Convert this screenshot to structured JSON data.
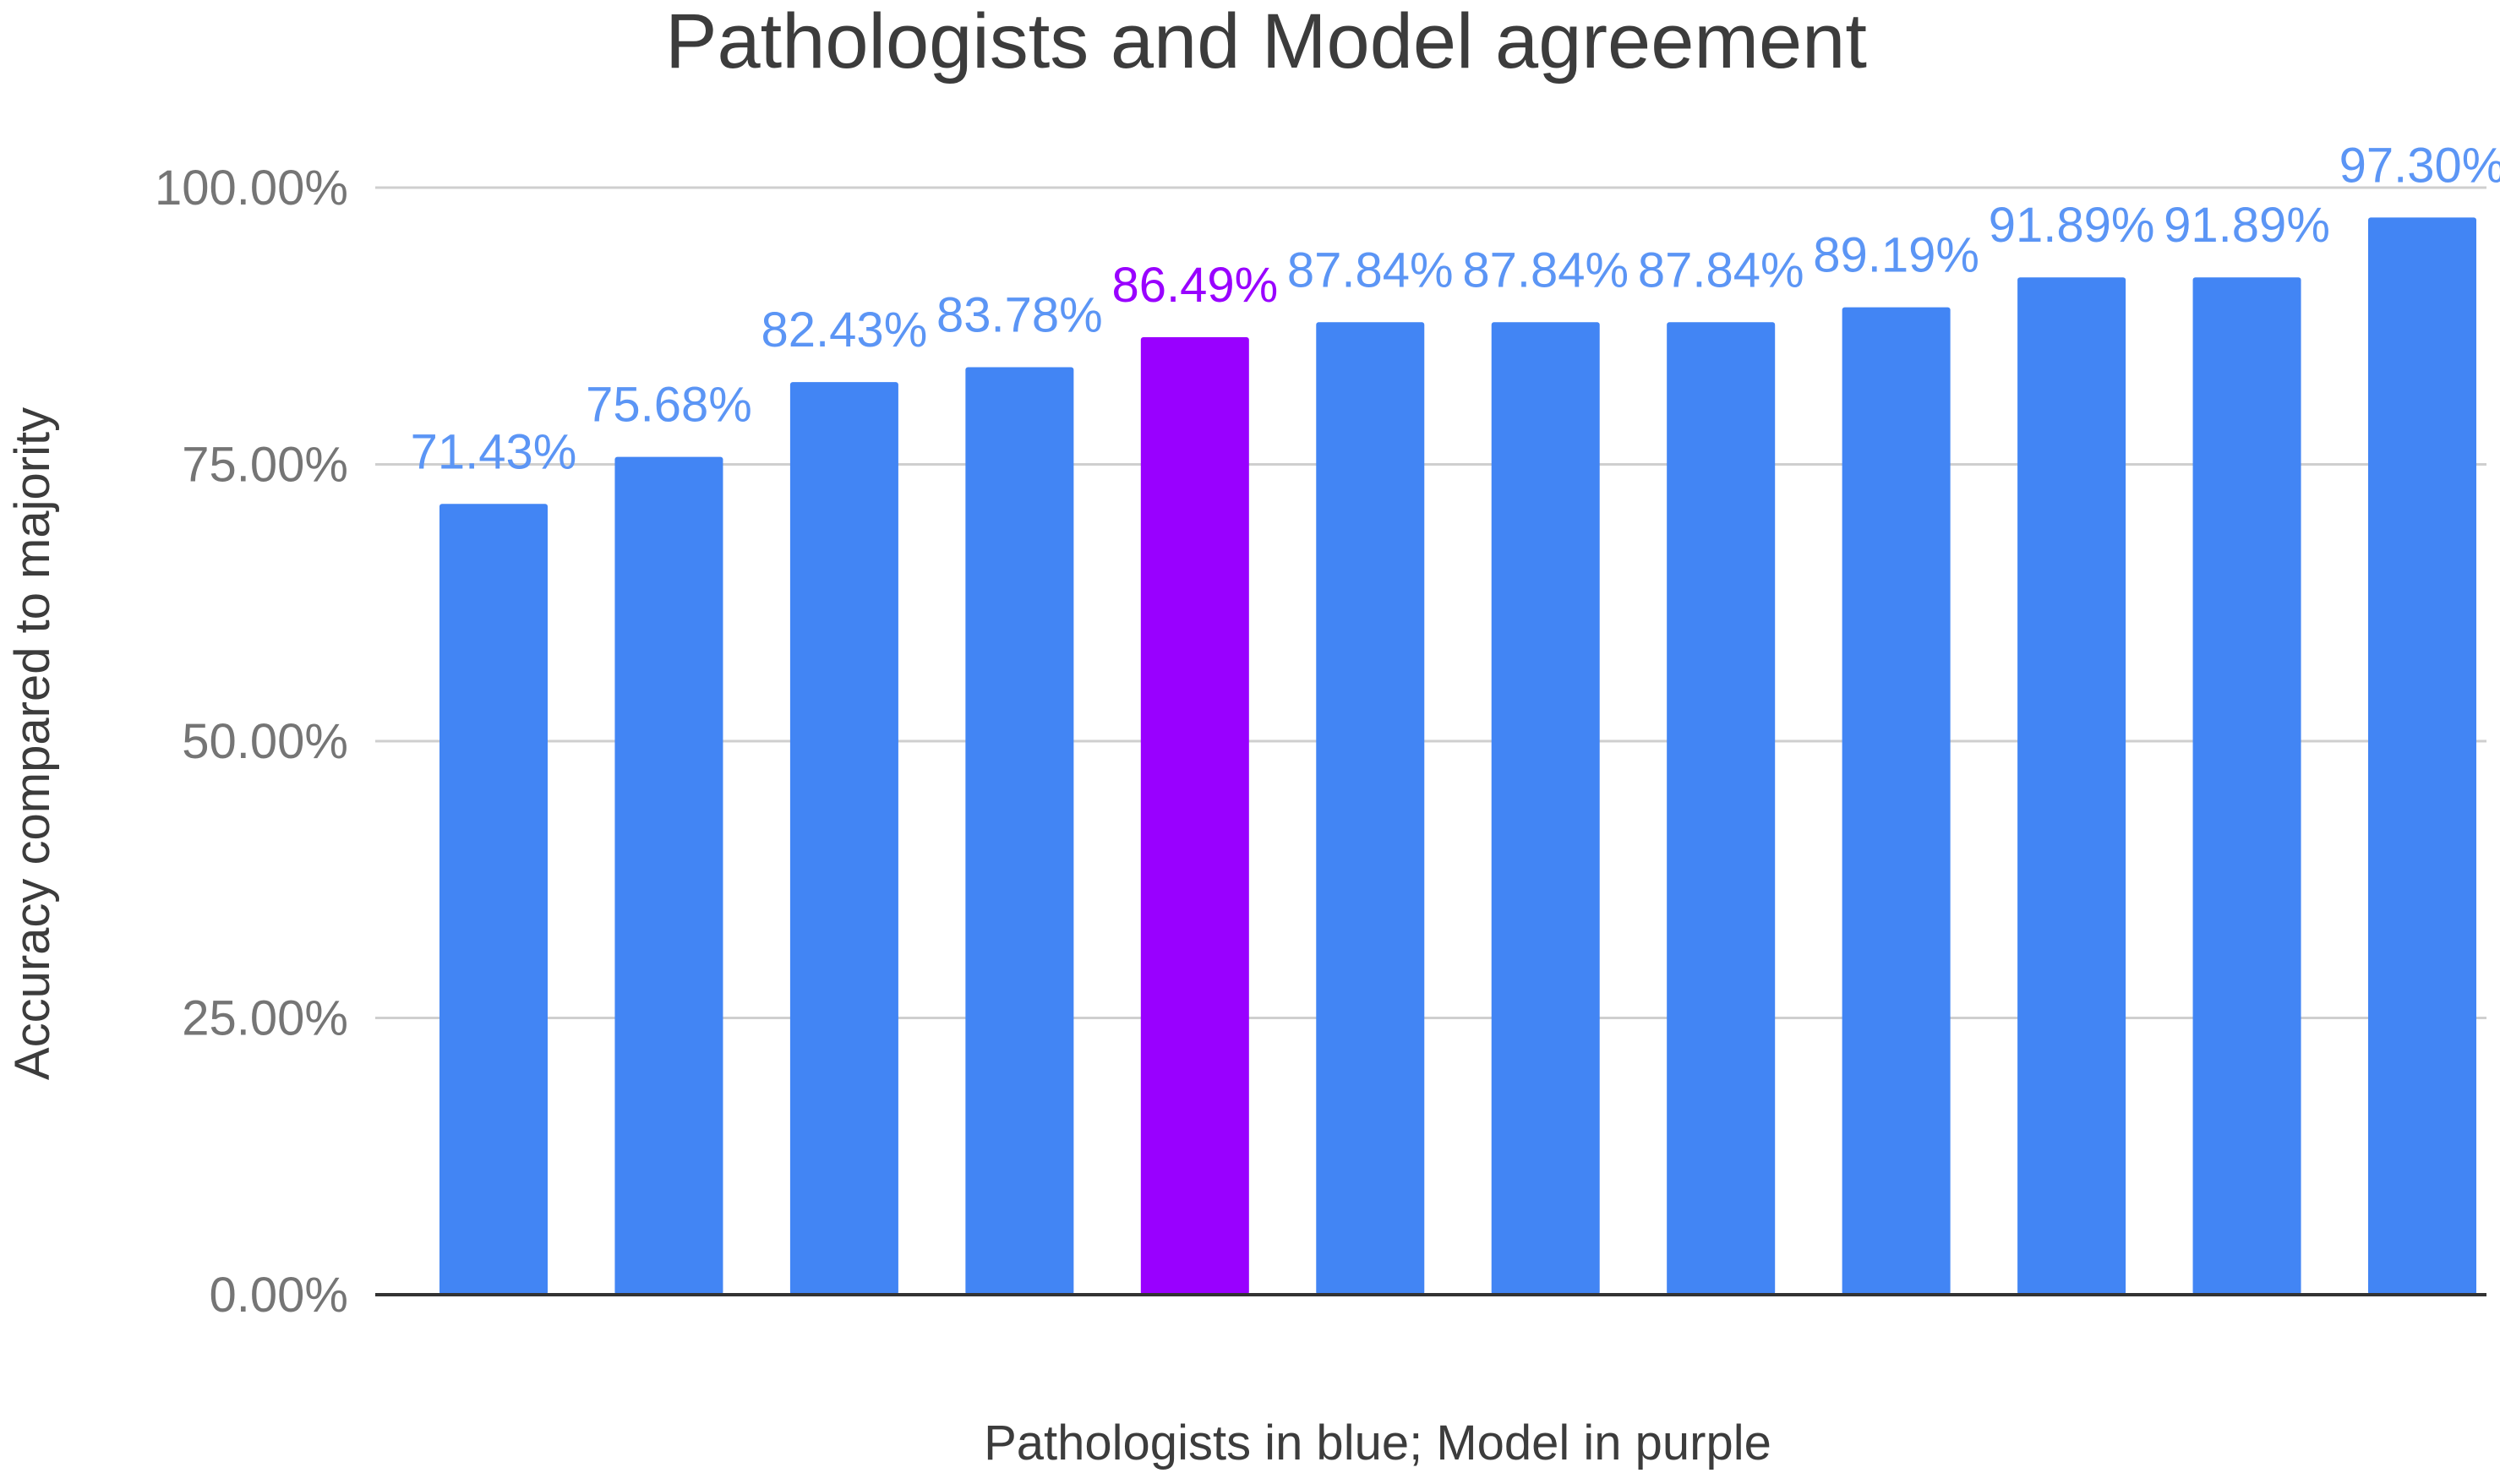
{
  "chart_data": {
    "type": "bar",
    "title": "Pathologists and Model agreement",
    "xlabel": "Pathologists in blue; Model in purple",
    "ylabel": "Accuracy compared to majority",
    "ylim": [
      0,
      100
    ],
    "yticks": [
      0,
      25,
      50,
      75,
      100
    ],
    "ytick_labels": [
      "0.00%",
      "25.00%",
      "50.00%",
      "75.00%",
      "100.00%"
    ],
    "categories": [
      "",
      "",
      "",
      "",
      "",
      "",
      "",
      "",
      "",
      "",
      "",
      ""
    ],
    "values": [
      71.43,
      75.68,
      82.43,
      83.78,
      86.49,
      87.84,
      87.84,
      87.84,
      89.19,
      91.89,
      91.89,
      97.3
    ],
    "value_labels": [
      "71.43%",
      "75.68%",
      "82.43%",
      "83.78%",
      "86.49%",
      "87.84%",
      "87.84%",
      "87.84%",
      "89.19%",
      "91.89%",
      "91.89%",
      "97.30%"
    ],
    "bar_colors": [
      "#4285f4",
      "#4285f4",
      "#4285f4",
      "#4285f4",
      "#9900ff",
      "#4285f4",
      "#4285f4",
      "#4285f4",
      "#4285f4",
      "#4285f4",
      "#4285f4",
      "#4285f4"
    ],
    "label_colors": [
      "#5b95f5",
      "#5b95f5",
      "#5b95f5",
      "#5b95f5",
      "#9900ff",
      "#5b95f5",
      "#5b95f5",
      "#5b95f5",
      "#5b95f5",
      "#5b95f5",
      "#5b95f5",
      "#5b95f5"
    ],
    "grid": true,
    "legend": "none"
  }
}
